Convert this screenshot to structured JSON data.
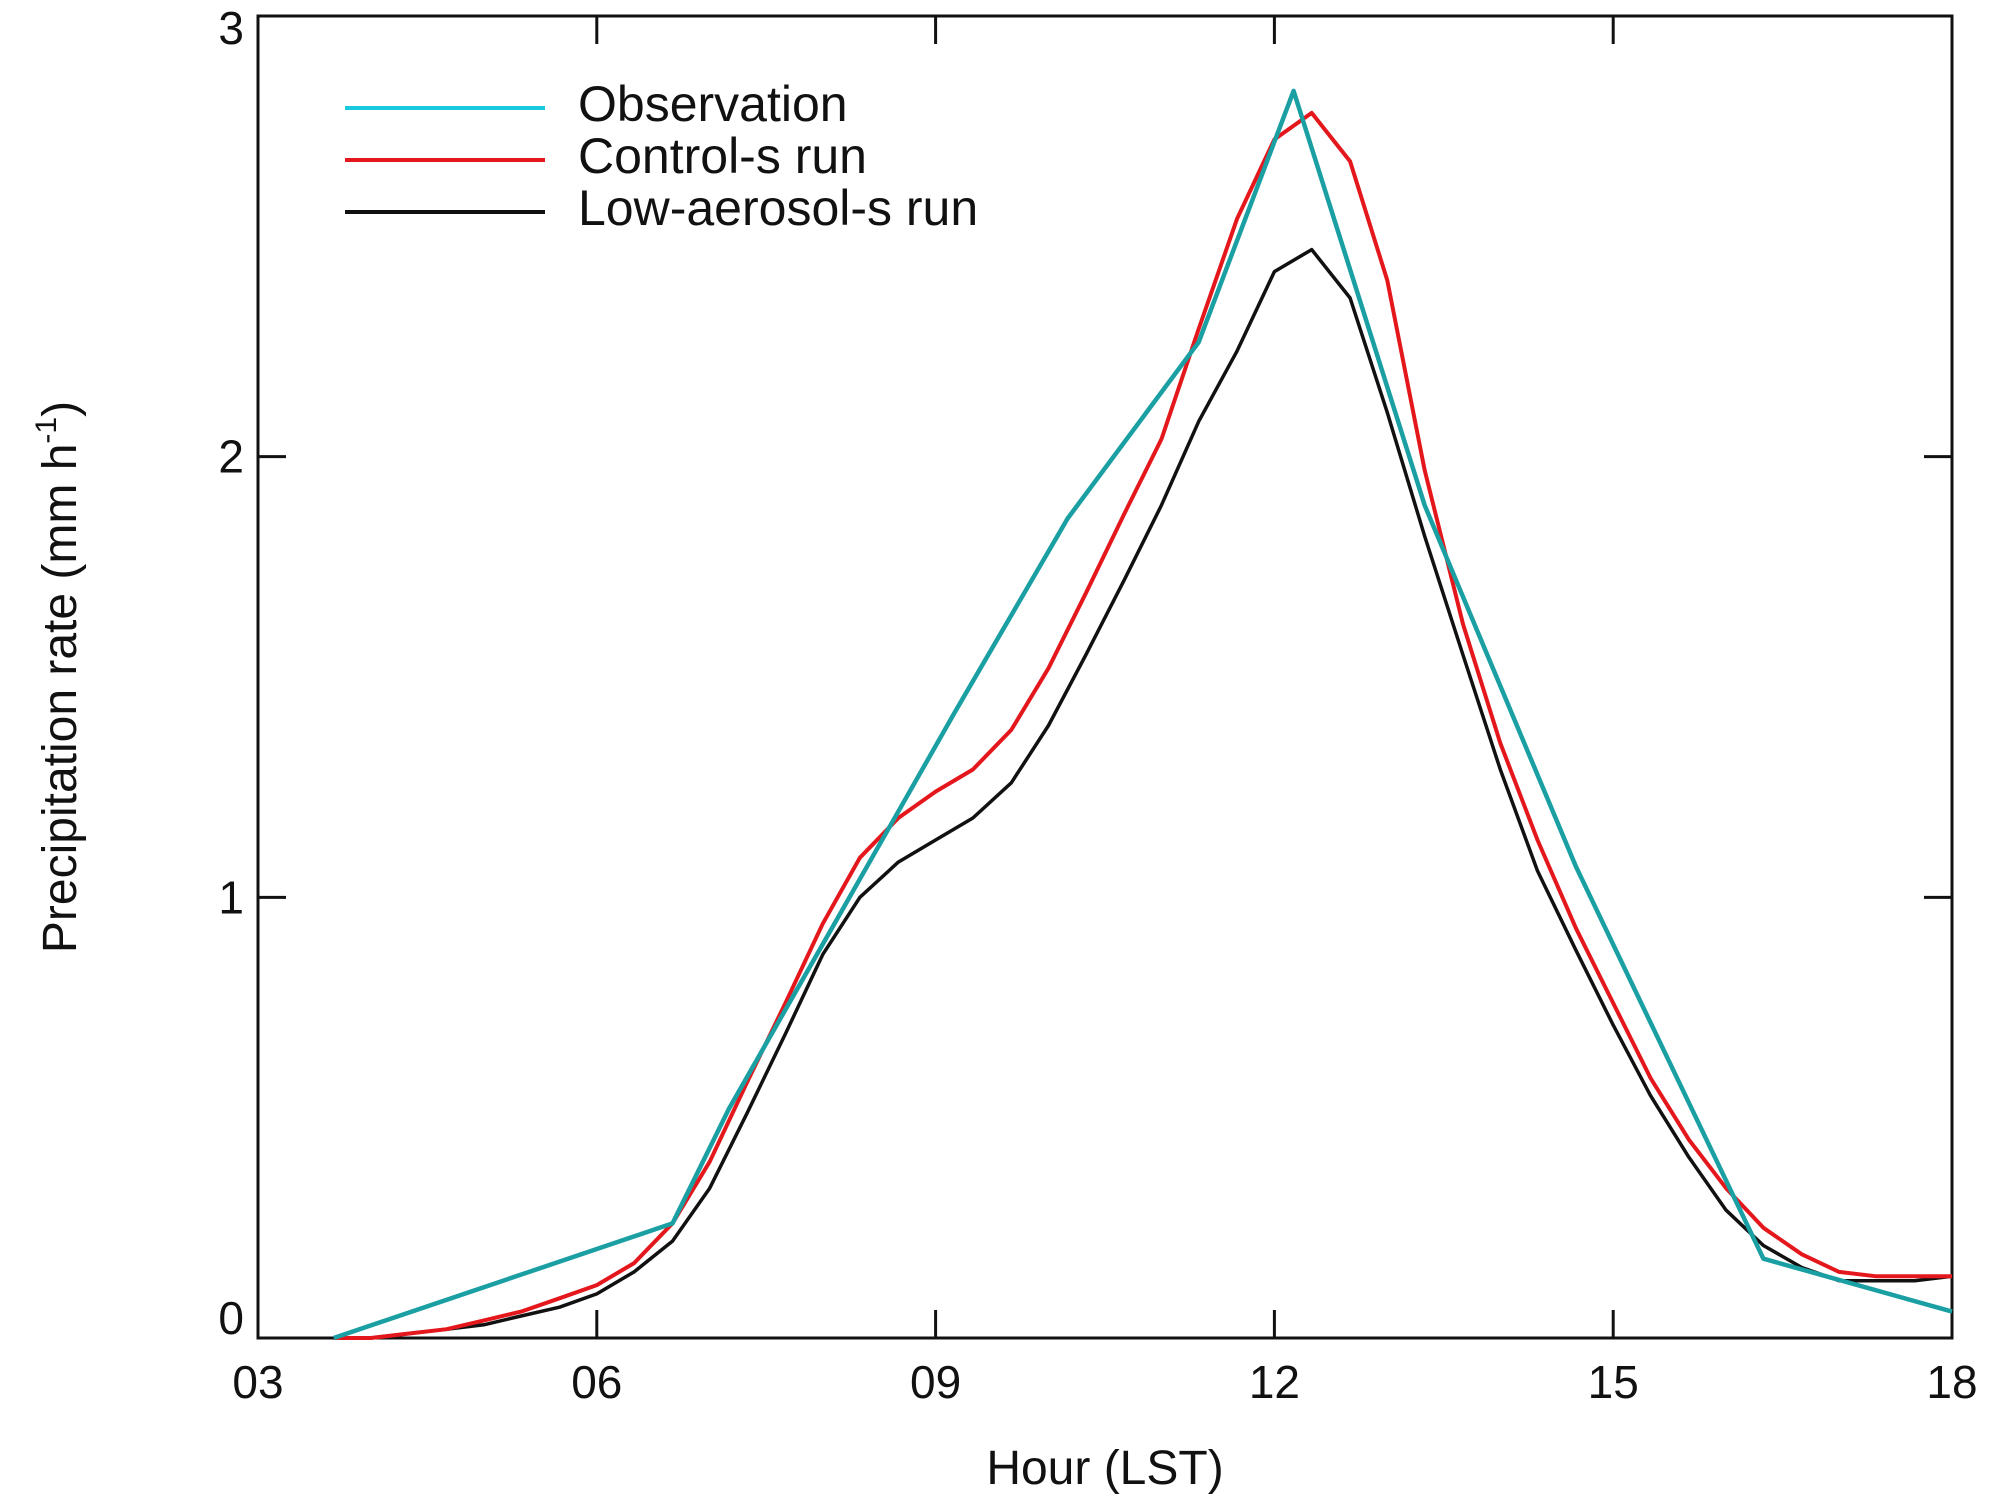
{
  "chart_data": {
    "type": "line",
    "xlabel": "Hour (LST)",
    "ylabel": "Precipitation rate (mm h",
    "ylabel_sup": "-1",
    "ylabel_close": ")",
    "xlim": [
      3,
      18
    ],
    "ylim": [
      0,
      3
    ],
    "xticks": [
      3,
      6,
      9,
      12,
      15,
      18
    ],
    "xtick_labels": [
      "03",
      "06",
      "09",
      "12",
      "15",
      "18"
    ],
    "yticks": [
      0,
      1,
      2,
      3
    ],
    "ytick_labels": [
      "0",
      "1",
      "2",
      "3"
    ],
    "grid": false,
    "legend_position": "top-left",
    "series": [
      {
        "name": "Observation",
        "color": "#1a9fa3",
        "legend_color": "#19c9e0",
        "x": [
          3.67,
          6.67,
          7.17,
          8.17,
          9.17,
          10.17,
          11.33,
          12.17,
          13.33,
          14.67,
          16.33,
          18.0
        ],
        "y": [
          0.0,
          0.26,
          0.52,
          0.97,
          1.42,
          1.86,
          2.26,
          2.83,
          1.89,
          1.07,
          0.18,
          0.06
        ]
      },
      {
        "name": "Control-s run",
        "color": "#e4181c",
        "x": [
          3.67,
          4.0,
          4.33,
          4.67,
          5.0,
          5.33,
          5.67,
          6.0,
          6.33,
          6.67,
          7.0,
          7.33,
          7.67,
          8.0,
          8.33,
          8.67,
          9.0,
          9.33,
          9.67,
          10.0,
          10.33,
          10.67,
          11.0,
          11.33,
          11.67,
          12.0,
          12.33,
          12.67,
          13.0,
          13.33,
          13.67,
          14.0,
          14.33,
          14.67,
          15.0,
          15.33,
          15.67,
          16.0,
          16.33,
          16.67,
          17.0,
          17.33,
          17.67,
          18.0
        ],
        "y": [
          0.0,
          0.0,
          0.01,
          0.02,
          0.04,
          0.06,
          0.09,
          0.12,
          0.17,
          0.26,
          0.4,
          0.58,
          0.76,
          0.94,
          1.09,
          1.18,
          1.24,
          1.29,
          1.38,
          1.52,
          1.69,
          1.87,
          2.04,
          2.29,
          2.54,
          2.72,
          2.78,
          2.67,
          2.4,
          1.97,
          1.62,
          1.35,
          1.13,
          0.93,
          0.76,
          0.59,
          0.45,
          0.34,
          0.25,
          0.19,
          0.15,
          0.14,
          0.14,
          0.14
        ]
      },
      {
        "name": "Low-aerosol-s run",
        "color": "#111111",
        "x": [
          3.67,
          4.0,
          4.33,
          4.67,
          5.0,
          5.33,
          5.67,
          6.0,
          6.33,
          6.67,
          7.0,
          7.33,
          7.67,
          8.0,
          8.33,
          8.67,
          9.0,
          9.33,
          9.67,
          10.0,
          10.33,
          10.67,
          11.0,
          11.33,
          11.67,
          12.0,
          12.33,
          12.67,
          13.0,
          13.33,
          13.67,
          14.0,
          14.33,
          14.67,
          15.0,
          15.33,
          15.67,
          16.0,
          16.33,
          16.67,
          17.0,
          17.33,
          17.67,
          18.0
        ],
        "y": [
          0.0,
          0.0,
          0.01,
          0.02,
          0.03,
          0.05,
          0.07,
          0.1,
          0.15,
          0.22,
          0.34,
          0.51,
          0.69,
          0.87,
          1.0,
          1.08,
          1.13,
          1.18,
          1.26,
          1.39,
          1.55,
          1.72,
          1.89,
          2.08,
          2.24,
          2.42,
          2.47,
          2.36,
          2.1,
          1.82,
          1.55,
          1.29,
          1.06,
          0.88,
          0.71,
          0.55,
          0.41,
          0.29,
          0.21,
          0.16,
          0.13,
          0.13,
          0.13,
          0.14
        ]
      }
    ]
  }
}
